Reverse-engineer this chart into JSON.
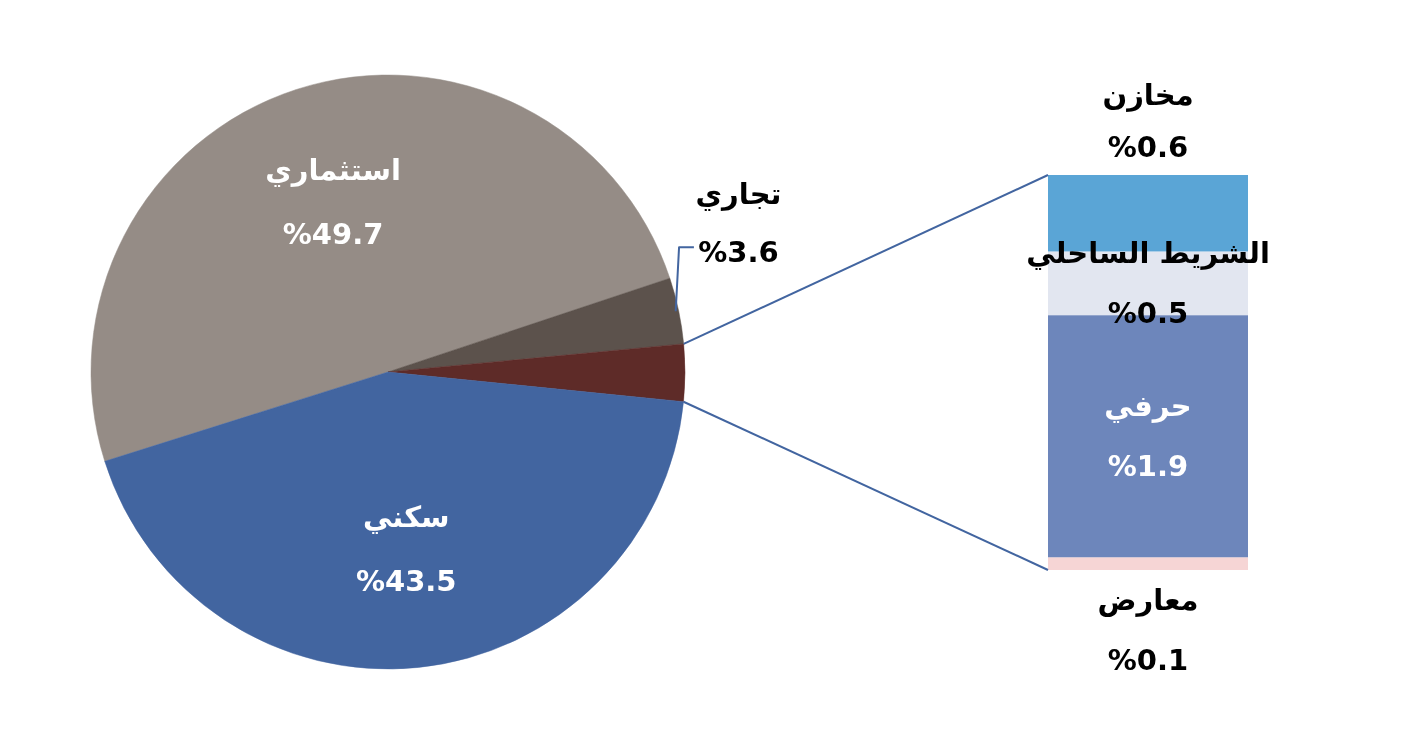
{
  "chart_data": [
    {
      "type": "pie",
      "categories": [
        "استثماري",
        "تجاري",
        null,
        "سكني"
      ],
      "values": [
        49.7,
        3.6,
        3.1,
        43.5
      ],
      "colors": [
        "#958c86",
        "#5c524c",
        "#5e2b28",
        "#4265a0"
      ],
      "value_labels": [
        "%49.7",
        "%3.6",
        null,
        "%43.5"
      ]
    },
    {
      "type": "bar",
      "stacked": true,
      "categories": [
        null
      ],
      "series": [
        {
          "name": "معارض",
          "color": "#f6d5d5",
          "values": [
            0.1
          ],
          "value_labels": [
            "%0.1"
          ]
        },
        {
          "name": "حرفي",
          "color": "#6d86bb",
          "values": [
            1.9
          ],
          "value_labels": [
            "%1.9"
          ]
        },
        {
          "name": "الشريط الساحلي",
          "color": "#e2e6f0",
          "values": [
            0.5
          ],
          "value_labels": [
            "%0.5"
          ]
        },
        {
          "name": "مخازن",
          "color": "#5aa5d6",
          "values": [
            0.6
          ],
          "value_labels": [
            "%0.6"
          ]
        }
      ]
    }
  ]
}
